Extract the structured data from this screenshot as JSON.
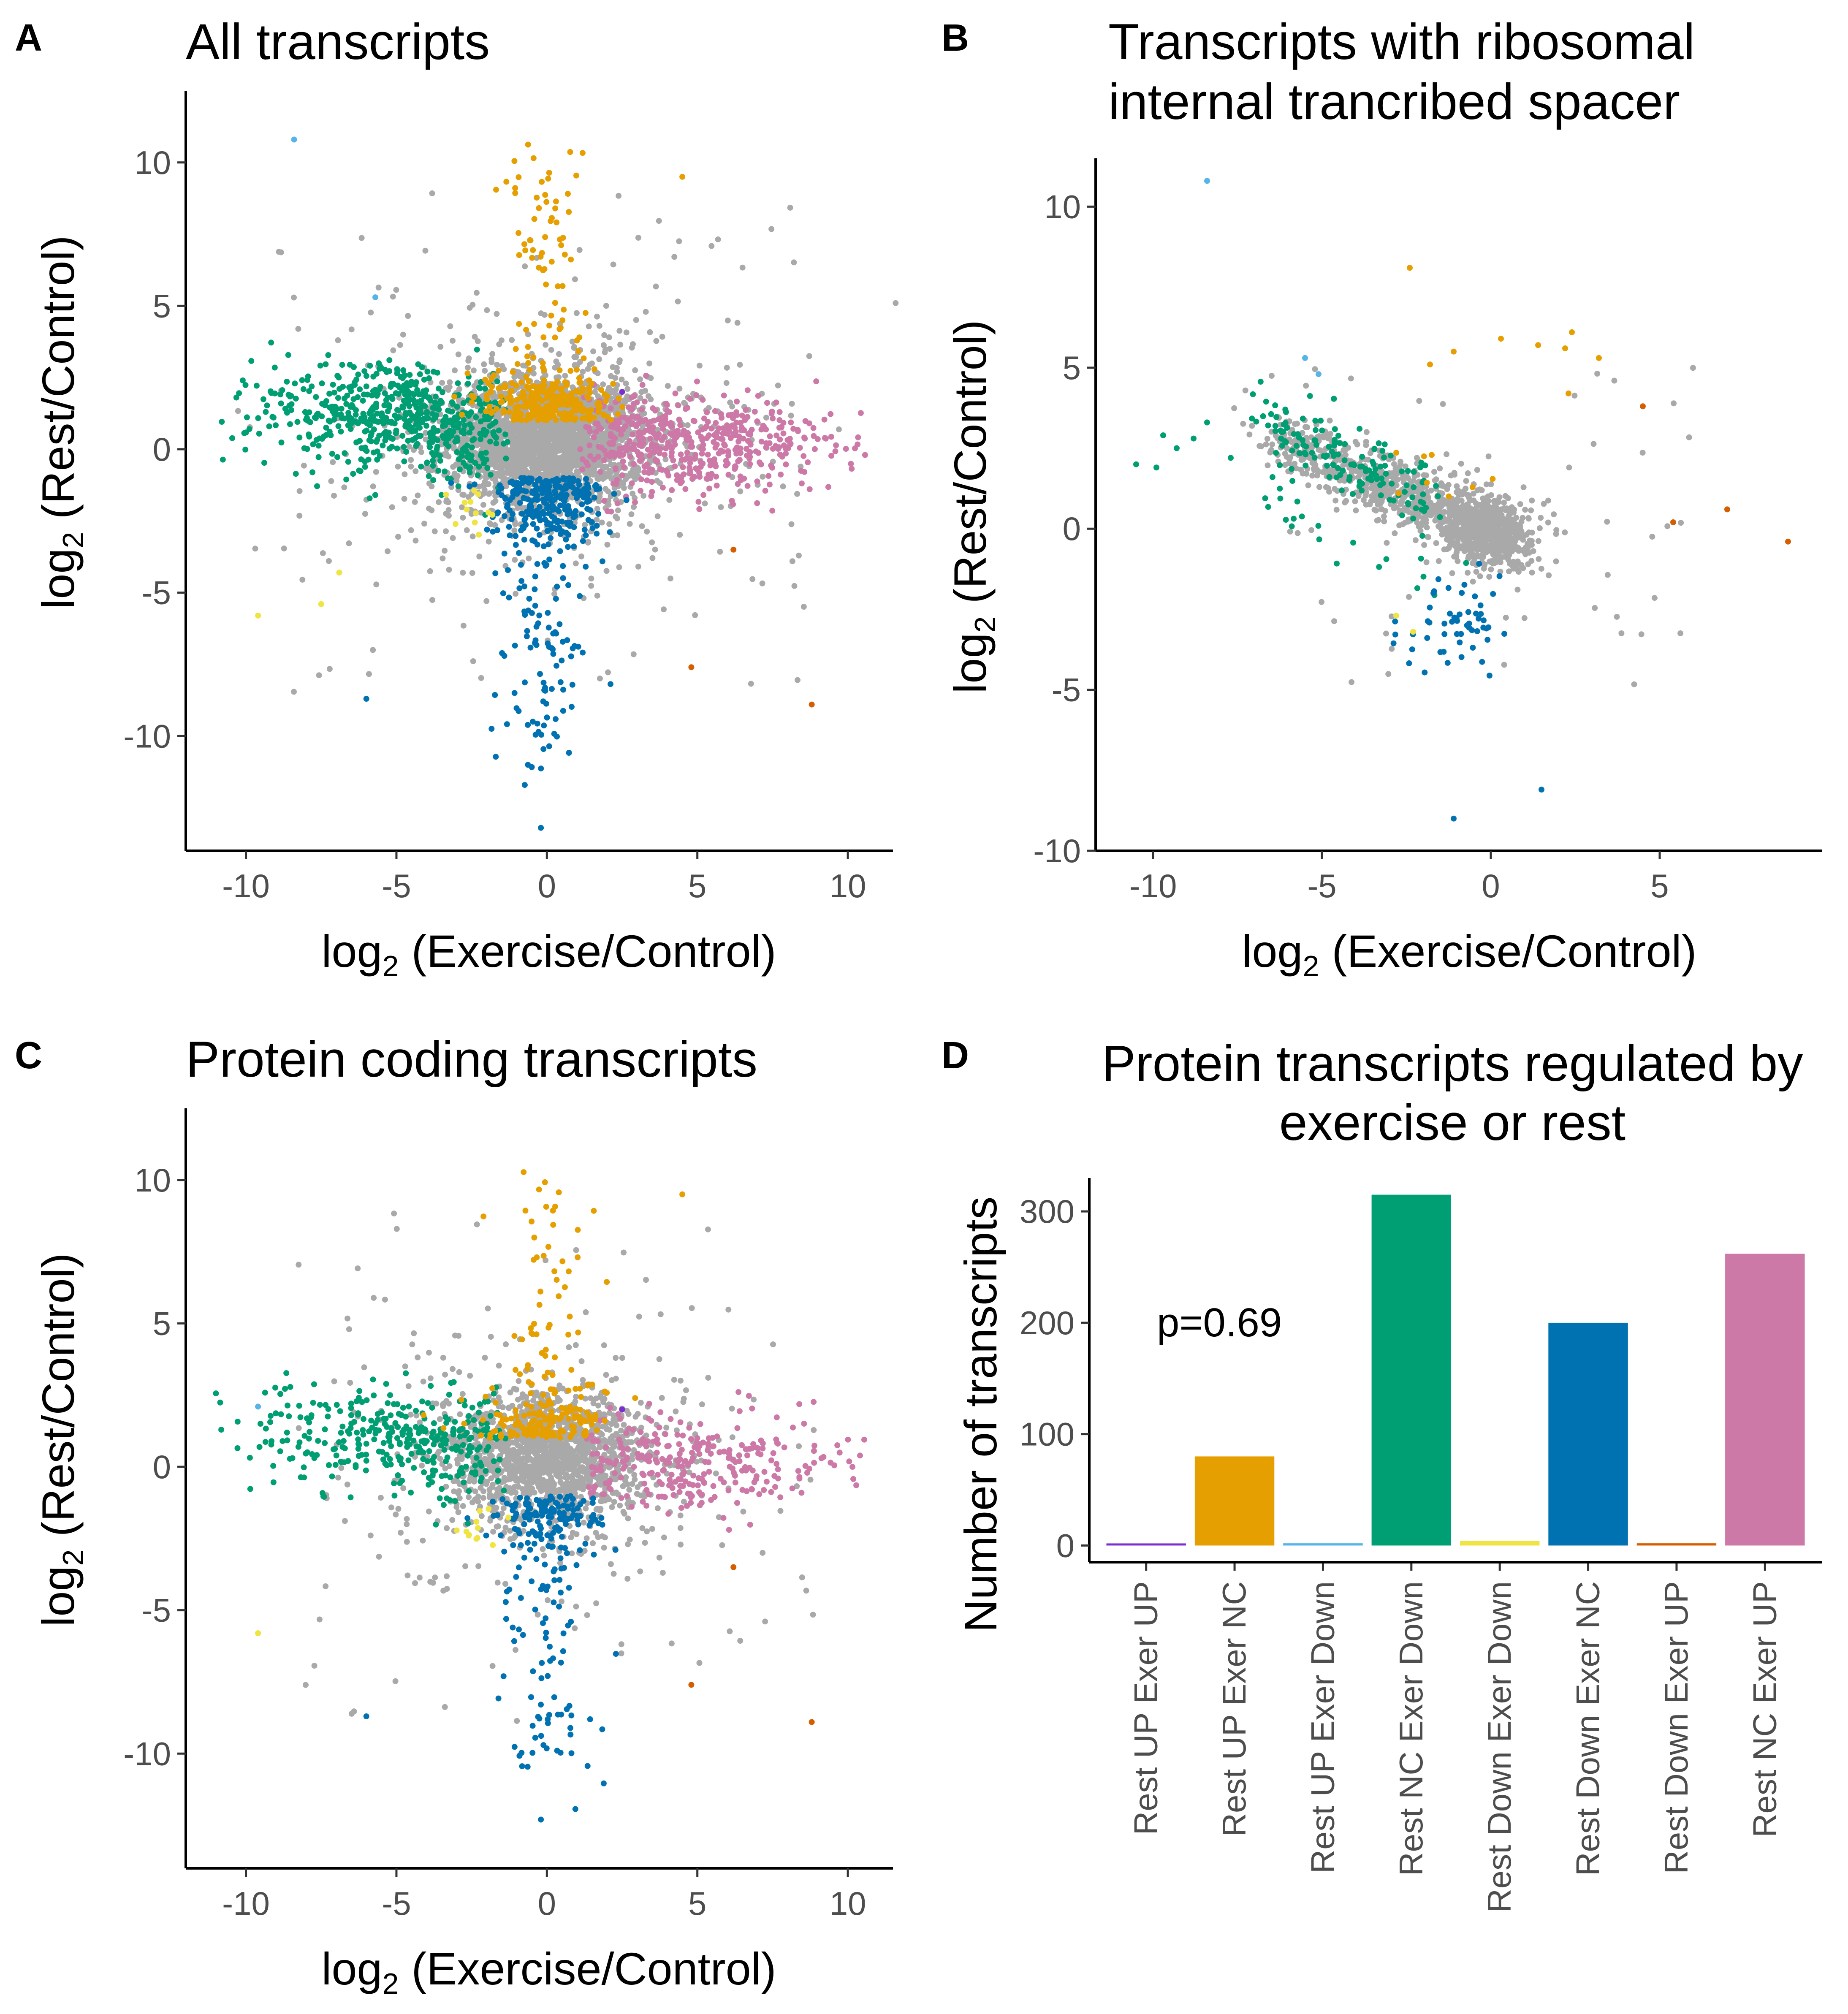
{
  "colors": {
    "grey": "#a9a9a9",
    "green": "#009e73",
    "orange": "#e69f00",
    "blue": "#0072b2",
    "pink": "#cc79a7",
    "purple": "#7b2fd0",
    "skyblue": "#56b4e9",
    "yellow": "#f0e442",
    "vermillion": "#d55e00"
  },
  "panels": [
    {
      "label": "A",
      "title_lines": [
        "All transcripts"
      ]
    },
    {
      "label": "B",
      "title_lines": [
        "Transcripts with ribosomal",
        "internal trancribed spacer"
      ]
    },
    {
      "label": "C",
      "title_lines": [
        "Protein coding transcripts"
      ]
    },
    {
      "label": "D",
      "title_lines": [
        "Protein transcripts regulated by",
        "exercise or rest"
      ]
    }
  ],
  "axis_text": {
    "log": "log",
    "sub": "2",
    "x_label": " (Exercise/Control)",
    "y_label": " (Rest/Control)",
    "count_label": "Number of transcripts"
  },
  "chart_data": [
    {
      "panel": "A",
      "type": "scatter",
      "title": "All transcripts",
      "xlabel": "log2 (Exercise/Control)",
      "ylabel": "log2 (Rest/Control)",
      "xlim": [
        -12,
        11.5
      ],
      "ylim": [
        -14,
        12.5
      ],
      "xticks": [
        -10,
        -5,
        0,
        5,
        10
      ],
      "yticks": [
        -10,
        -5,
        0,
        5,
        10
      ],
      "xtick_labels": [
        "-10",
        "-5",
        "0",
        "5",
        "10"
      ],
      "ytick_labels": [
        "-10",
        "-5",
        "0",
        "5",
        "10"
      ],
      "highlights": [
        {
          "color": "skyblue",
          "x": -8.4,
          "y": 10.8
        },
        {
          "color": "orange",
          "x": 4.5,
          "y": 9.5
        },
        {
          "color": "vermillion",
          "x": 6.2,
          "y": -3.5
        },
        {
          "color": "vermillion",
          "x": 4.8,
          "y": -7.6
        },
        {
          "color": "vermillion",
          "x": 8.8,
          "y": -8.9
        },
        {
          "color": "purple",
          "x": 2.5,
          "y": 2.0
        },
        {
          "color": "yellow",
          "x": -9.6,
          "y": -5.8
        },
        {
          "color": "yellow",
          "x": -7.5,
          "y": -5.4
        },
        {
          "color": "yellow",
          "x": -6.9,
          "y": -4.3
        },
        {
          "color": "blue",
          "x": -6.0,
          "y": -8.7
        },
        {
          "color": "blue",
          "x": -0.2,
          "y": -13.2
        },
        {
          "color": "skyblue",
          "x": -5.7,
          "y": 5.3
        }
      ]
    },
    {
      "panel": "B",
      "type": "scatter",
      "title": "Transcripts with ribosomal internal trancribed spacer",
      "xlabel": "log2 (Exercise/Control)",
      "ylabel": "log2 (Rest/Control)",
      "xlim": [
        -11.7,
        9.8
      ],
      "ylim": [
        -10,
        11.5
      ],
      "xticks": [
        -10,
        -5,
        0,
        5
      ],
      "yticks": [
        -10,
        -5,
        0,
        5,
        10
      ],
      "xtick_labels": [
        "-10",
        "-5",
        "0",
        "5"
      ],
      "ytick_labels": [
        "-10",
        "-5",
        "0",
        "5",
        "10"
      ],
      "highlights": [
        {
          "color": "skyblue",
          "x": -8.4,
          "y": 10.8
        },
        {
          "color": "skyblue",
          "x": -5.5,
          "y": 5.3
        },
        {
          "color": "skyblue",
          "x": -5.1,
          "y": 4.8
        },
        {
          "color": "orange",
          "x": -2.4,
          "y": 8.1
        },
        {
          "color": "orange",
          "x": -1.1,
          "y": 5.5
        },
        {
          "color": "orange",
          "x": -1.8,
          "y": 5.1
        },
        {
          "color": "orange",
          "x": 0.3,
          "y": 5.9
        },
        {
          "color": "orange",
          "x": 1.4,
          "y": 5.7
        },
        {
          "color": "orange",
          "x": 2.4,
          "y": 6.1
        },
        {
          "color": "orange",
          "x": 2.2,
          "y": 5.6
        },
        {
          "color": "orange",
          "x": 3.2,
          "y": 5.3
        },
        {
          "color": "orange",
          "x": 2.3,
          "y": 4.2
        },
        {
          "color": "vermillion",
          "x": 4.5,
          "y": 3.8
        },
        {
          "color": "vermillion",
          "x": 5.4,
          "y": 0.2
        },
        {
          "color": "vermillion",
          "x": 7.0,
          "y": 0.6
        },
        {
          "color": "vermillion",
          "x": 8.8,
          "y": -0.4
        },
        {
          "color": "blue",
          "x": 1.5,
          "y": -8.1
        },
        {
          "color": "blue",
          "x": -1.1,
          "y": -9.0
        },
        {
          "color": "yellow",
          "x": -2.8,
          "y": -2.7
        },
        {
          "color": "yellow",
          "x": -2.3,
          "y": -3.2
        }
      ]
    },
    {
      "panel": "C",
      "type": "scatter",
      "title": "Protein coding transcripts",
      "xlabel": "log2 (Exercise/Control)",
      "ylabel": "log2 (Rest/Control)",
      "xlim": [
        -12,
        11.5
      ],
      "ylim": [
        -14,
        12.5
      ],
      "xticks": [
        -10,
        -5,
        0,
        5,
        10
      ],
      "yticks": [
        -10,
        -5,
        0,
        5,
        10
      ],
      "xtick_labels": [
        "-10",
        "-5",
        "0",
        "5",
        "10"
      ],
      "ytick_labels": [
        "-10",
        "-5",
        "0",
        "5",
        "10"
      ],
      "highlights": [
        {
          "color": "orange",
          "x": 4.5,
          "y": 9.5
        },
        {
          "color": "vermillion",
          "x": 6.2,
          "y": -3.5
        },
        {
          "color": "vermillion",
          "x": 4.8,
          "y": -7.6
        },
        {
          "color": "vermillion",
          "x": 8.8,
          "y": -8.9
        },
        {
          "color": "purple",
          "x": 2.5,
          "y": 2.0
        },
        {
          "color": "yellow",
          "x": -9.6,
          "y": -5.8
        },
        {
          "color": "skyblue",
          "x": -9.6,
          "y": 2.1
        },
        {
          "color": "blue",
          "x": -6.0,
          "y": -8.7
        },
        {
          "color": "blue",
          "x": -0.2,
          "y": -12.3
        },
        {
          "color": "orange",
          "x": -4.1,
          "y": 1.8
        }
      ]
    },
    {
      "panel": "D",
      "type": "bar",
      "title": "Protein transcripts regulated by exercise or rest",
      "xlabel": "",
      "ylabel": "Number of transcripts",
      "ylim": [
        -15,
        330
      ],
      "yticks": [
        0,
        100,
        200,
        300
      ],
      "ytick_labels": [
        "0",
        "100",
        "200",
        "300"
      ],
      "annotation": "p=0.69",
      "categories": [
        "Rest UP Exer UP",
        "Rest UP Exer NC",
        "Rest UP Exer Down",
        "Rest NC Exer Down",
        "Rest Down Exer Down",
        "Rest Down Exer NC",
        "Rest Down Exer UP",
        "Rest NC Exer UP"
      ],
      "values": [
        1,
        80,
        2,
        315,
        4,
        200,
        2,
        262
      ],
      "bar_colors": [
        "purple",
        "orange",
        "skyblue",
        "green",
        "yellow",
        "blue",
        "vermillion",
        "pink"
      ]
    }
  ]
}
